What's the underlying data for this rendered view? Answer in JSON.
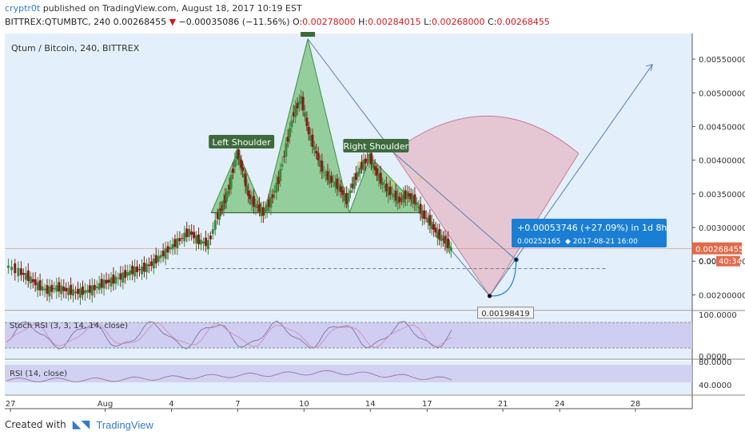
{
  "header": {
    "user": "cryptr0t",
    "published": "published on TradingView.com, August 18, 2017 10:19 EST",
    "symbol": "BITTREX:QTUMBTC, 240",
    "last": "0.00268455",
    "change": "−0.00035086 (−11.56%)",
    "o_label": "O:",
    "o": "0.00278000",
    "h_label": "H:",
    "h": "0.00284015",
    "l_label": "L:",
    "l": "0.00268000",
    "c_label": "C:",
    "c": "0.00268455"
  },
  "footer": {
    "created": "Created with",
    "brand": "TradingView"
  },
  "colors": {
    "bg": "#e3effa",
    "up": "#3a8a3a",
    "down": "#8b1a1a",
    "pattern": "#5fb75f",
    "wedge": "#e7a6b4",
    "label": "#1a7fd4",
    "price": "#e06b4a",
    "rsi": "#cbc7ef"
  },
  "chart_data": {
    "type": "candlestick",
    "title": "Qtum / Bitcoin, 240, BITTREX",
    "y_range": [
      0.00178,
      0.00588
    ],
    "y_ticks": [
      "0.00550000",
      "0.00500000",
      "0.00450000",
      "0.00400000",
      "0.00350000",
      "0.00300000",
      "0.00250000",
      "0.00200000"
    ],
    "y_tick_values": [
      0.0055,
      0.005,
      0.0045,
      0.004,
      0.0035,
      0.003,
      0.0025,
      0.002
    ],
    "x_ticks": [
      "27",
      "Aug",
      "4",
      "7",
      "10",
      "14",
      "17",
      "21",
      "24",
      "28"
    ],
    "x_tick_days": [
      -5,
      0,
      3.5,
      7,
      10.5,
      14,
      17,
      21,
      24,
      28
    ],
    "x_range": [
      -5.3,
      31
    ],
    "close_path": [
      [
        -5.2,
        0.00244
      ],
      [
        -4.5,
        0.00235
      ],
      [
        -4,
        0.00226
      ],
      [
        -3.5,
        0.00214
      ],
      [
        -3,
        0.00206
      ],
      [
        -2.5,
        0.00211
      ],
      [
        -2,
        0.00207
      ],
      [
        -1.5,
        0.00204
      ],
      [
        -1,
        0.00205
      ],
      [
        -0.5,
        0.0021
      ],
      [
        0,
        0.00218
      ],
      [
        0.5,
        0.00222
      ],
      [
        1,
        0.00228
      ],
      [
        1.5,
        0.00236
      ],
      [
        2,
        0.00238
      ],
      [
        2.5,
        0.00246
      ],
      [
        3,
        0.00258
      ],
      [
        3.5,
        0.0027
      ],
      [
        4,
        0.00282
      ],
      [
        4.5,
        0.00294
      ],
      [
        5,
        0.0028
      ],
      [
        5.5,
        0.00276
      ],
      [
        6,
        0.00318
      ],
      [
        6.3,
        0.00336
      ],
      [
        6.6,
        0.0036
      ],
      [
        7,
        0.00412
      ],
      [
        7.3,
        0.00385
      ],
      [
        7.6,
        0.00348
      ],
      [
        8,
        0.00332
      ],
      [
        8.4,
        0.00322
      ],
      [
        8.8,
        0.0034
      ],
      [
        9.2,
        0.0037
      ],
      [
        9.6,
        0.0042
      ],
      [
        10,
        0.0047
      ],
      [
        10.4,
        0.00492
      ],
      [
        10.8,
        0.0044
      ],
      [
        11.2,
        0.0041
      ],
      [
        11.6,
        0.0038
      ],
      [
        12,
        0.0037
      ],
      [
        12.4,
        0.0036
      ],
      [
        12.8,
        0.0034
      ],
      [
        13.2,
        0.0037
      ],
      [
        13.6,
        0.00392
      ],
      [
        14,
        0.00405
      ],
      [
        14.4,
        0.0038
      ],
      [
        14.8,
        0.0036
      ],
      [
        15.2,
        0.0035
      ],
      [
        15.6,
        0.0034
      ],
      [
        16,
        0.0035
      ],
      [
        16.4,
        0.0034
      ],
      [
        16.8,
        0.0032
      ],
      [
        17.2,
        0.00308
      ],
      [
        17.6,
        0.0029
      ],
      [
        18,
        0.0028
      ],
      [
        18.3,
        0.00268
      ]
    ],
    "pattern_points": {
      "neckline": 0.00322,
      "left_shoulder_top": [
        7,
        0.00413
      ],
      "head_top": [
        10.7,
        0.0058
      ],
      "right_shoulder_top": [
        14,
        0.00405
      ],
      "start": [
        5.6,
        0.00322
      ],
      "end": [
        16.8,
        0.00322
      ]
    },
    "annotations": {
      "left_shoulder": "Left Shoulder",
      "right_shoulder": "Right Shoulder",
      "target_label": "+0.00053746 (+27.09%) in 1d 8h",
      "target_sub1": "0.00252165",
      "target_sub2": "2017-08-21  16:00",
      "low_label": "0.00198419",
      "low_point": [
        20.3,
        0.00198419
      ],
      "target_point": [
        21.7,
        0.00252165
      ],
      "current_price": "0.00268455",
      "current_countdown": "40:34",
      "axis_partial": "0.002"
    },
    "stoch_rsi": {
      "title": "Stoch RSI (3, 3, 14, 14, close)",
      "ticks": [
        "100.0000",
        "0.0000"
      ]
    },
    "rsi": {
      "title": "RSI (14, close)",
      "ticks": [
        "80.0000",
        "40.0000"
      ]
    }
  }
}
